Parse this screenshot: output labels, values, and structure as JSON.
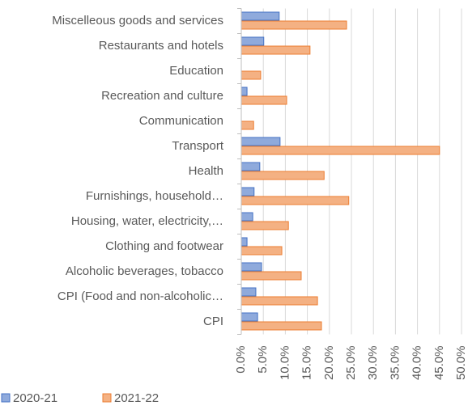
{
  "chart_data": {
    "type": "hbar",
    "categories": [
      "Miscelleous goods and services",
      "Restaurants and hotels",
      "Education",
      "Recreation and culture",
      "Communication",
      "Transport",
      "Health",
      "Furnishings, household…",
      "Housing, water, electricity,…",
      "Clothing and footwear",
      "Alcoholic beverages, tobacco",
      "CPI (Food and non-alcoholic…",
      "CPI"
    ],
    "series": [
      {
        "name": "2020-21",
        "color": "#8faadc",
        "values": [
          8.6,
          5.1,
          0,
          1.3,
          0,
          8.8,
          4.2,
          2.9,
          2.6,
          1.3,
          4.6,
          3.3,
          3.7
        ]
      },
      {
        "name": "2021-22",
        "color": "#f4b183",
        "values": [
          23.9,
          15.6,
          4.4,
          10.3,
          2.8,
          45.0,
          18.8,
          24.4,
          10.7,
          9.2,
          13.6,
          17.3,
          18.2
        ]
      }
    ],
    "xlim": [
      0,
      50
    ],
    "xticks": [
      {
        "value": 0,
        "label": "0.0%"
      },
      {
        "value": 5,
        "label": "5.0%"
      },
      {
        "value": 10,
        "label": "10.0%"
      },
      {
        "value": 15,
        "label": "15.0%"
      },
      {
        "value": 20,
        "label": "20.0%"
      },
      {
        "value": 25,
        "label": "25.0%"
      },
      {
        "value": 30,
        "label": "30.0%"
      },
      {
        "value": 35,
        "label": "35.0%"
      },
      {
        "value": 40,
        "label": "40.0%"
      },
      {
        "value": 45,
        "label": "45.0%"
      },
      {
        "value": 50,
        "label": "50.0%"
      }
    ],
    "grid": true
  }
}
